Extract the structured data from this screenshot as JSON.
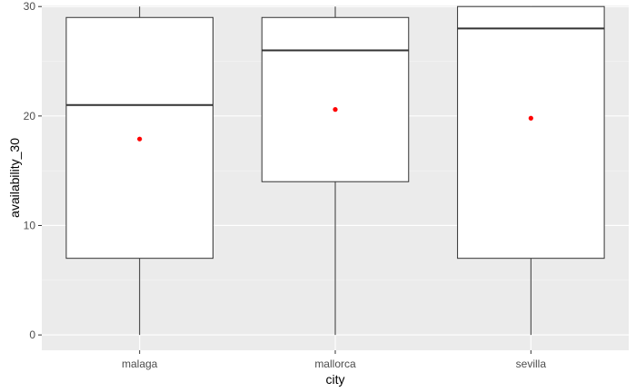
{
  "chart_data": {
    "type": "boxplot",
    "xlabel": "city",
    "ylabel": "availability_30",
    "ylim": [
      -1.4,
      30.1
    ],
    "y_ticks": [
      0,
      10,
      20,
      30
    ],
    "grid": true,
    "categories": [
      "malaga",
      "mallorca",
      "sevilla"
    ],
    "boxes": [
      {
        "category": "malaga",
        "whisker_low": 0,
        "q1": 7,
        "median": 21,
        "q3": 29,
        "whisker_high": 30,
        "mean": 17.9
      },
      {
        "category": "mallorca",
        "whisker_low": 0,
        "q1": 14,
        "median": 26,
        "q3": 29,
        "whisker_high": 30,
        "mean": 20.6
      },
      {
        "category": "sevilla",
        "whisker_low": 0,
        "q1": 7,
        "median": 28,
        "q3": 30,
        "whisker_high": 30,
        "mean": 19.8
      }
    ],
    "colors": {
      "panel_background": "#ebebeb",
      "grid_major": "#ffffff",
      "box_fill": "#ffffff",
      "box_line": "#333333",
      "mean_point": "#ff0000"
    }
  }
}
